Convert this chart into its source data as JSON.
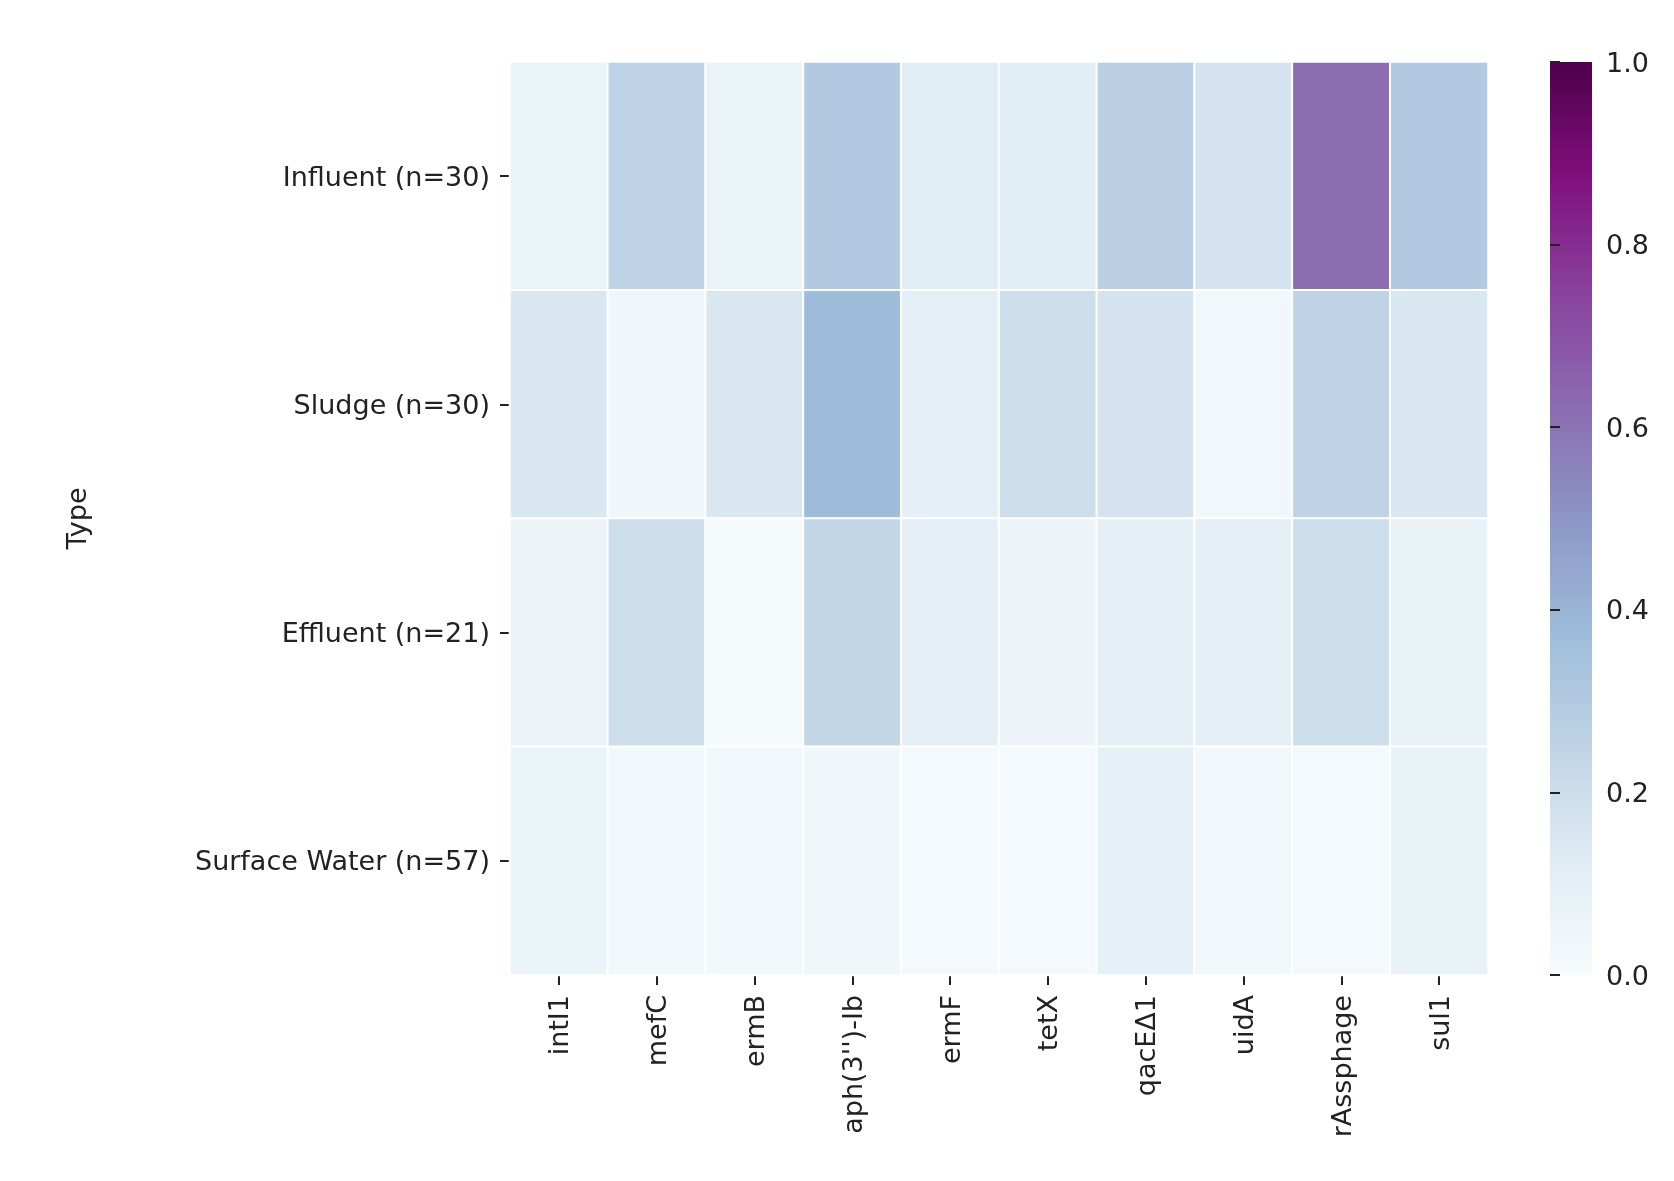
{
  "chart_data": {
    "type": "heatmap",
    "ylabel": "Type",
    "categories": [
      "intI1",
      "mefC",
      "ermB",
      "aph(3'')-Ib",
      "ermF",
      "tetX",
      "qacEΔ1",
      "uidA",
      "rAssphage",
      "sul1"
    ],
    "y_categories": [
      "Influent (n=30)",
      "Sludge (n=30)",
      "Effluent (n=21)",
      "Surface Water (n=57)"
    ],
    "cells": [
      [
        0.07,
        0.25,
        0.07,
        0.3,
        0.12,
        0.12,
        0.27,
        0.17,
        0.62,
        0.3
      ],
      [
        0.15,
        0.04,
        0.15,
        0.37,
        0.1,
        0.2,
        0.17,
        0.03,
        0.25,
        0.15
      ],
      [
        0.06,
        0.2,
        0.01,
        0.23,
        0.1,
        0.06,
        0.1,
        0.1,
        0.2,
        0.08
      ],
      [
        0.07,
        0.03,
        0.03,
        0.04,
        0.02,
        0.02,
        0.09,
        0.03,
        0.02,
        0.08
      ]
    ],
    "clim": [
      0,
      1
    ],
    "cticks": [
      {
        "value": 0,
        "label": "0.0"
      },
      {
        "value": 0.2,
        "label": "0.2"
      },
      {
        "value": 0.4,
        "label": "0.4"
      },
      {
        "value": 0.6,
        "label": "0.6"
      },
      {
        "value": 0.8,
        "label": "0.8"
      },
      {
        "value": 1,
        "label": "1.0"
      }
    ]
  }
}
